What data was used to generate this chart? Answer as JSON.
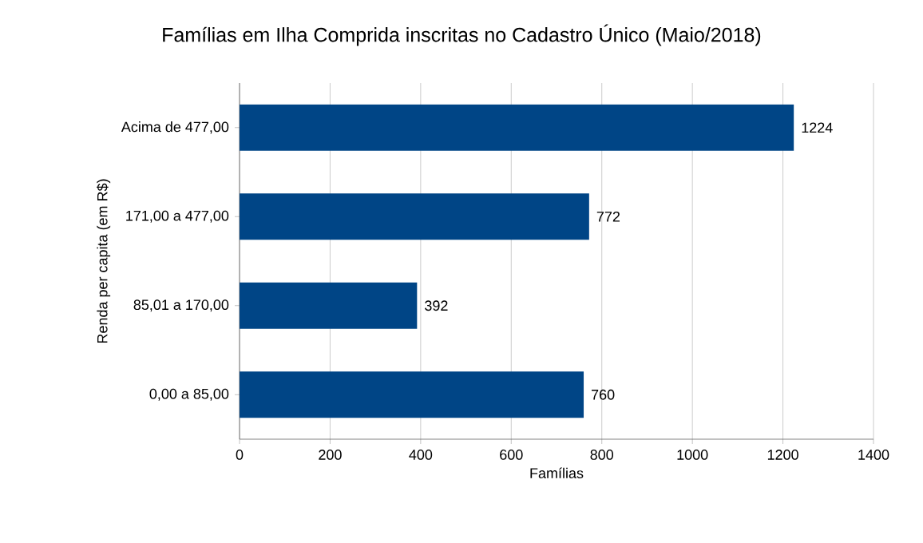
{
  "chart_data": {
    "type": "bar",
    "orientation": "horizontal",
    "title": "Famílias em Ilha Comprida inscritas no Cadastro Único (Maio/2018)",
    "xlabel": "Famílias",
    "ylabel": "Renda per capita (em R$)",
    "categories": [
      "Acima de 477,00",
      "171,00 a 477,00",
      "85,01 a 170,00",
      "0,00 a 85,00"
    ],
    "values": [
      1224,
      772,
      392,
      760
    ],
    "color": "#004586",
    "xlim": [
      0,
      1400
    ],
    "xticks": [
      0,
      200,
      400,
      600,
      800,
      1000,
      1200,
      1400
    ],
    "grid": "x",
    "data_labels": true
  }
}
